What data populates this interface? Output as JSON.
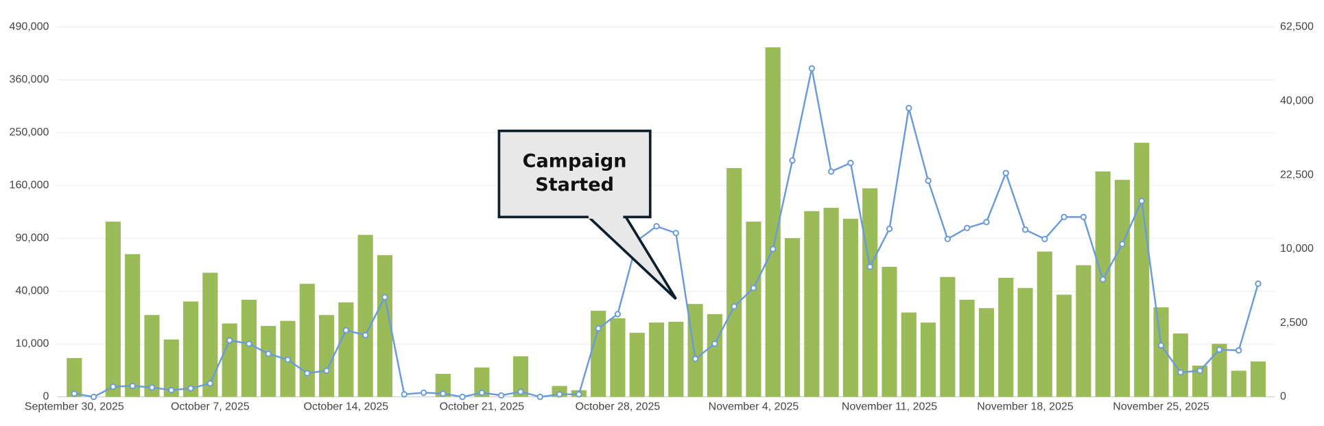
{
  "chart_data": {
    "type": "bar",
    "categories": [
      "September 30, 2025",
      null,
      null,
      null,
      null,
      null,
      null,
      "October 7, 2025",
      null,
      null,
      null,
      null,
      null,
      null,
      "October 14, 2025",
      null,
      null,
      null,
      null,
      null,
      null,
      "October 21, 2025",
      null,
      null,
      null,
      null,
      null,
      null,
      "October 28, 2025",
      null,
      null,
      null,
      null,
      null,
      null,
      "November 4, 2025",
      null,
      null,
      null,
      null,
      null,
      null,
      "November 11, 2025",
      null,
      null,
      null,
      null,
      null,
      null,
      "November 18, 2025",
      null,
      null,
      null,
      null,
      null,
      null,
      "November 25, 2025",
      null,
      null,
      null,
      null,
      null
    ],
    "series": [
      {
        "type": "bar",
        "color": "#9bbb59",
        "values": [
          5400,
          0,
          110000,
          73000,
          24000,
          11800,
          32600,
          55200,
          19300,
          33800,
          18000,
          20700,
          45800,
          24000,
          32000,
          94000,
          72000,
          0,
          0,
          1900,
          0,
          3100,
          0,
          5900,
          0,
          430,
          160,
          26600,
          22100,
          14700,
          19800,
          20200,
          30900,
          24500,
          187500,
          110000,
          437700,
          90300,
          123600,
          128100,
          113700,
          155800,
          60600,
          25500,
          19800,
          51500,
          33800,
          28200,
          50800,
          42500,
          75600,
          37400,
          62100,
          182000,
          168700,
          231300,
          28700,
          14400,
          3500,
          10100,
          2450,
          4500
        ]
      },
      {
        "type": "line",
        "axis": "y2",
        "color": "#6a9bd8",
        "values": [
          5,
          0,
          47,
          55,
          40,
          21,
          33,
          83,
          1460,
          1290,
          848,
          631,
          256,
          313,
          2030,
          1740,
          4540,
          3,
          8,
          5,
          0,
          8,
          1,
          12,
          0,
          3,
          3,
          2140,
          3130,
          11150,
          13300,
          12260,
          660,
          1290,
          3730,
          5420,
          9980,
          25540,
          49300,
          23200,
          25000,
          7730,
          12900,
          38100,
          21350,
          11390,
          13030,
          13960,
          22880,
          12770,
          11390,
          14780,
          14780,
          6300,
          10670,
          17540,
          1210,
          274,
          313,
          1020,
          985,
          5850
        ]
      }
    ],
    "ylim": [
      0,
      490000
    ],
    "yticks": [
      0,
      {
        "value": 10000,
        "label": "10,000"
      },
      {
        "value": 40000,
        "label": "40,000"
      },
      {
        "value": 90000,
        "label": "90,000"
      },
      {
        "value": 160000,
        "label": "160,000"
      },
      {
        "value": 250000,
        "label": "250,000"
      },
      {
        "value": 360000,
        "label": "360,000"
      },
      {
        "value": 490000,
        "label": "490,000"
      }
    ],
    "yscale": "sqrt",
    "y2lim": [
      0,
      62500
    ],
    "y2ticks": [
      0,
      {
        "value": 2500,
        "label": "2,500"
      },
      {
        "value": 10000,
        "label": "10,000"
      },
      {
        "value": 22500,
        "label": "22,500"
      },
      {
        "value": 40000,
        "label": "40,000"
      },
      {
        "value": 62500,
        "label": "62,500"
      }
    ],
    "y2scale": "sqrt",
    "grid": true,
    "annotation": {
      "text": "Campaign Started",
      "category_index": 31
    }
  }
}
